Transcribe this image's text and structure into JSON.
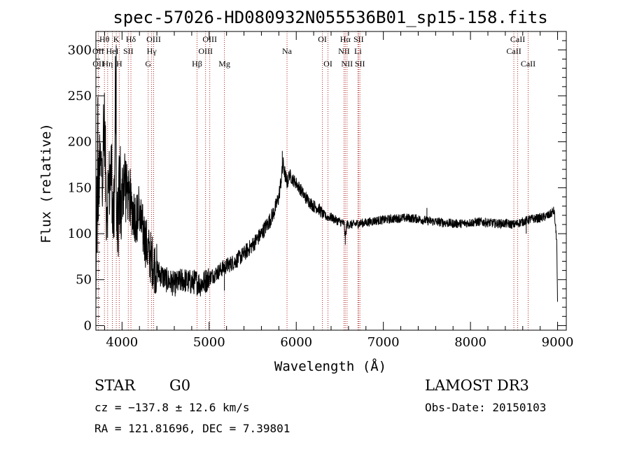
{
  "chart_data": {
    "type": "line",
    "title": "spec-57026-HD080932N055536B01_sp15-158.fits",
    "xlabel": "Wavelength (Å)",
    "ylabel": "Flux (relative)",
    "xlim": [
      3700,
      9100
    ],
    "ylim": [
      -5,
      320
    ],
    "x_ticks": [
      4000,
      5000,
      6000,
      7000,
      8000,
      9000
    ],
    "y_ticks": [
      0,
      50,
      100,
      150,
      200,
      250,
      300
    ],
    "x_tick_labels": [
      "4000",
      "5000",
      "6000",
      "7000",
      "8000",
      "9000"
    ],
    "y_tick_labels": [
      "0",
      "50",
      "100",
      "150",
      "200",
      "250",
      "300"
    ],
    "grid": false,
    "series": [
      {
        "name": "flux",
        "color": "#000000",
        "anchors": [
          [
            3700,
            5
          ],
          [
            3705,
            75
          ],
          [
            3710,
            150
          ],
          [
            3715,
            40
          ],
          [
            3720,
            260
          ],
          [
            3725,
            120
          ],
          [
            3735,
            160
          ],
          [
            3750,
            170
          ],
          [
            3780,
            175
          ],
          [
            3800,
            220
          ],
          [
            3820,
            130
          ],
          [
            3850,
            150
          ],
          [
            3880,
            170
          ],
          [
            3900,
            110
          ],
          [
            3915,
            125
          ],
          [
            3925,
            310
          ],
          [
            3935,
            120
          ],
          [
            3950,
            100
          ],
          [
            3970,
            150
          ],
          [
            3990,
            120
          ],
          [
            4020,
            165
          ],
          [
            4060,
            145
          ],
          [
            4100,
            130
          ],
          [
            4150,
            120
          ],
          [
            4200,
            115
          ],
          [
            4250,
            100
          ],
          [
            4300,
            80
          ],
          [
            4350,
            70
          ],
          [
            4400,
            60
          ],
          [
            4450,
            55
          ],
          [
            4500,
            50
          ],
          [
            4550,
            48
          ],
          [
            4600,
            45
          ],
          [
            4650,
            47
          ],
          [
            4700,
            50
          ],
          [
            4750,
            48
          ],
          [
            4800,
            47
          ],
          [
            4850,
            48
          ],
          [
            4900,
            45
          ],
          [
            4950,
            48
          ],
          [
            5000,
            52
          ],
          [
            5050,
            55
          ],
          [
            5100,
            58
          ],
          [
            5150,
            62
          ],
          [
            5200,
            65
          ],
          [
            5300,
            70
          ],
          [
            5400,
            78
          ],
          [
            5500,
            88
          ],
          [
            5600,
            100
          ],
          [
            5700,
            115
          ],
          [
            5750,
            125
          ],
          [
            5800,
            140
          ],
          [
            5850,
            175
          ],
          [
            5880,
            160
          ],
          [
            5900,
            155
          ],
          [
            5920,
            165
          ],
          [
            5950,
            160
          ],
          [
            6000,
            155
          ],
          [
            6050,
            148
          ],
          [
            6100,
            140
          ],
          [
            6150,
            135
          ],
          [
            6200,
            130
          ],
          [
            6250,
            128
          ],
          [
            6300,
            122
          ],
          [
            6350,
            118
          ],
          [
            6400,
            118
          ],
          [
            6450,
            115
          ],
          [
            6500,
            113
          ],
          [
            6550,
            111
          ],
          [
            6563,
            95
          ],
          [
            6580,
            110
          ],
          [
            6650,
            110
          ],
          [
            6700,
            111
          ],
          [
            6800,
            112
          ],
          [
            6900,
            114
          ],
          [
            7000,
            115
          ],
          [
            7100,
            116
          ],
          [
            7200,
            117
          ],
          [
            7300,
            117
          ],
          [
            7400,
            116
          ],
          [
            7500,
            114
          ],
          [
            7600,
            113
          ],
          [
            7700,
            112
          ],
          [
            7800,
            111
          ],
          [
            7900,
            111
          ],
          [
            8000,
            112
          ],
          [
            8100,
            113
          ],
          [
            8200,
            112
          ],
          [
            8300,
            111
          ],
          [
            8400,
            111
          ],
          [
            8500,
            110
          ],
          [
            8600,
            113
          ],
          [
            8700,
            116
          ],
          [
            8800,
            117
          ],
          [
            8900,
            120
          ],
          [
            8960,
            125
          ],
          [
            8990,
            92
          ],
          [
            9000,
            15
          ]
        ]
      }
    ],
    "line_marks": [
      {
        "label": "OII",
        "wavelength": 3727,
        "row": 1
      },
      {
        "label": "OII",
        "wavelength": 3729,
        "row": 2
      },
      {
        "label": "Hθ",
        "wavelength": 3798,
        "row": 0
      },
      {
        "label": "Hη",
        "wavelength": 3835,
        "row": 2
      },
      {
        "label": "HeI",
        "wavelength": 3889,
        "row": 1
      },
      {
        "label": "K",
        "wavelength": 3934,
        "row": 0
      },
      {
        "label": "H",
        "wavelength": 3968,
        "row": 2
      },
      {
        "label": "SII",
        "wavelength": 4072,
        "row": 1
      },
      {
        "label": "Hδ",
        "wavelength": 4102,
        "row": 0
      },
      {
        "label": "G",
        "wavelength": 4300,
        "row": 2
      },
      {
        "label": "Hγ",
        "wavelength": 4340,
        "row": 1
      },
      {
        "label": "OIII",
        "wavelength": 4363,
        "row": 0
      },
      {
        "label": "Hβ",
        "wavelength": 4861,
        "row": 2
      },
      {
        "label": "OIII",
        "wavelength": 4959,
        "row": 1
      },
      {
        "label": "OIII",
        "wavelength": 5007,
        "row": 0
      },
      {
        "label": "Mg",
        "wavelength": 5175,
        "row": 2
      },
      {
        "label": "Na",
        "wavelength": 5894,
        "row": 1
      },
      {
        "label": "OI",
        "wavelength": 6300,
        "row": 0
      },
      {
        "label": "OI",
        "wavelength": 6364,
        "row": 2
      },
      {
        "label": "NII",
        "wavelength": 6548,
        "row": 1
      },
      {
        "label": "Hα",
        "wavelength": 6563,
        "row": 0
      },
      {
        "label": "NII",
        "wavelength": 6583,
        "row": 2
      },
      {
        "label": "Li",
        "wavelength": 6708,
        "row": 1
      },
      {
        "label": "SII",
        "wavelength": 6716,
        "row": 0
      },
      {
        "label": "SII",
        "wavelength": 6731,
        "row": 2
      },
      {
        "label": "CaII",
        "wavelength": 8498,
        "row": 1
      },
      {
        "label": "CaII",
        "wavelength": 8542,
        "row": 0
      },
      {
        "label": "CaII",
        "wavelength": 8662,
        "row": 2
      }
    ],
    "colors": {
      "line_marker": "#b22222",
      "spectrum": "#000000"
    }
  },
  "info": {
    "object_class": "STAR",
    "subclass": "G0",
    "survey": "LAMOST DR3",
    "cz": "cz = −137.8 ± 12.6 km/s",
    "obs_date": "Obs-Date: 20150103",
    "coords": "RA = 121.81696, DEC =   7.39801"
  }
}
